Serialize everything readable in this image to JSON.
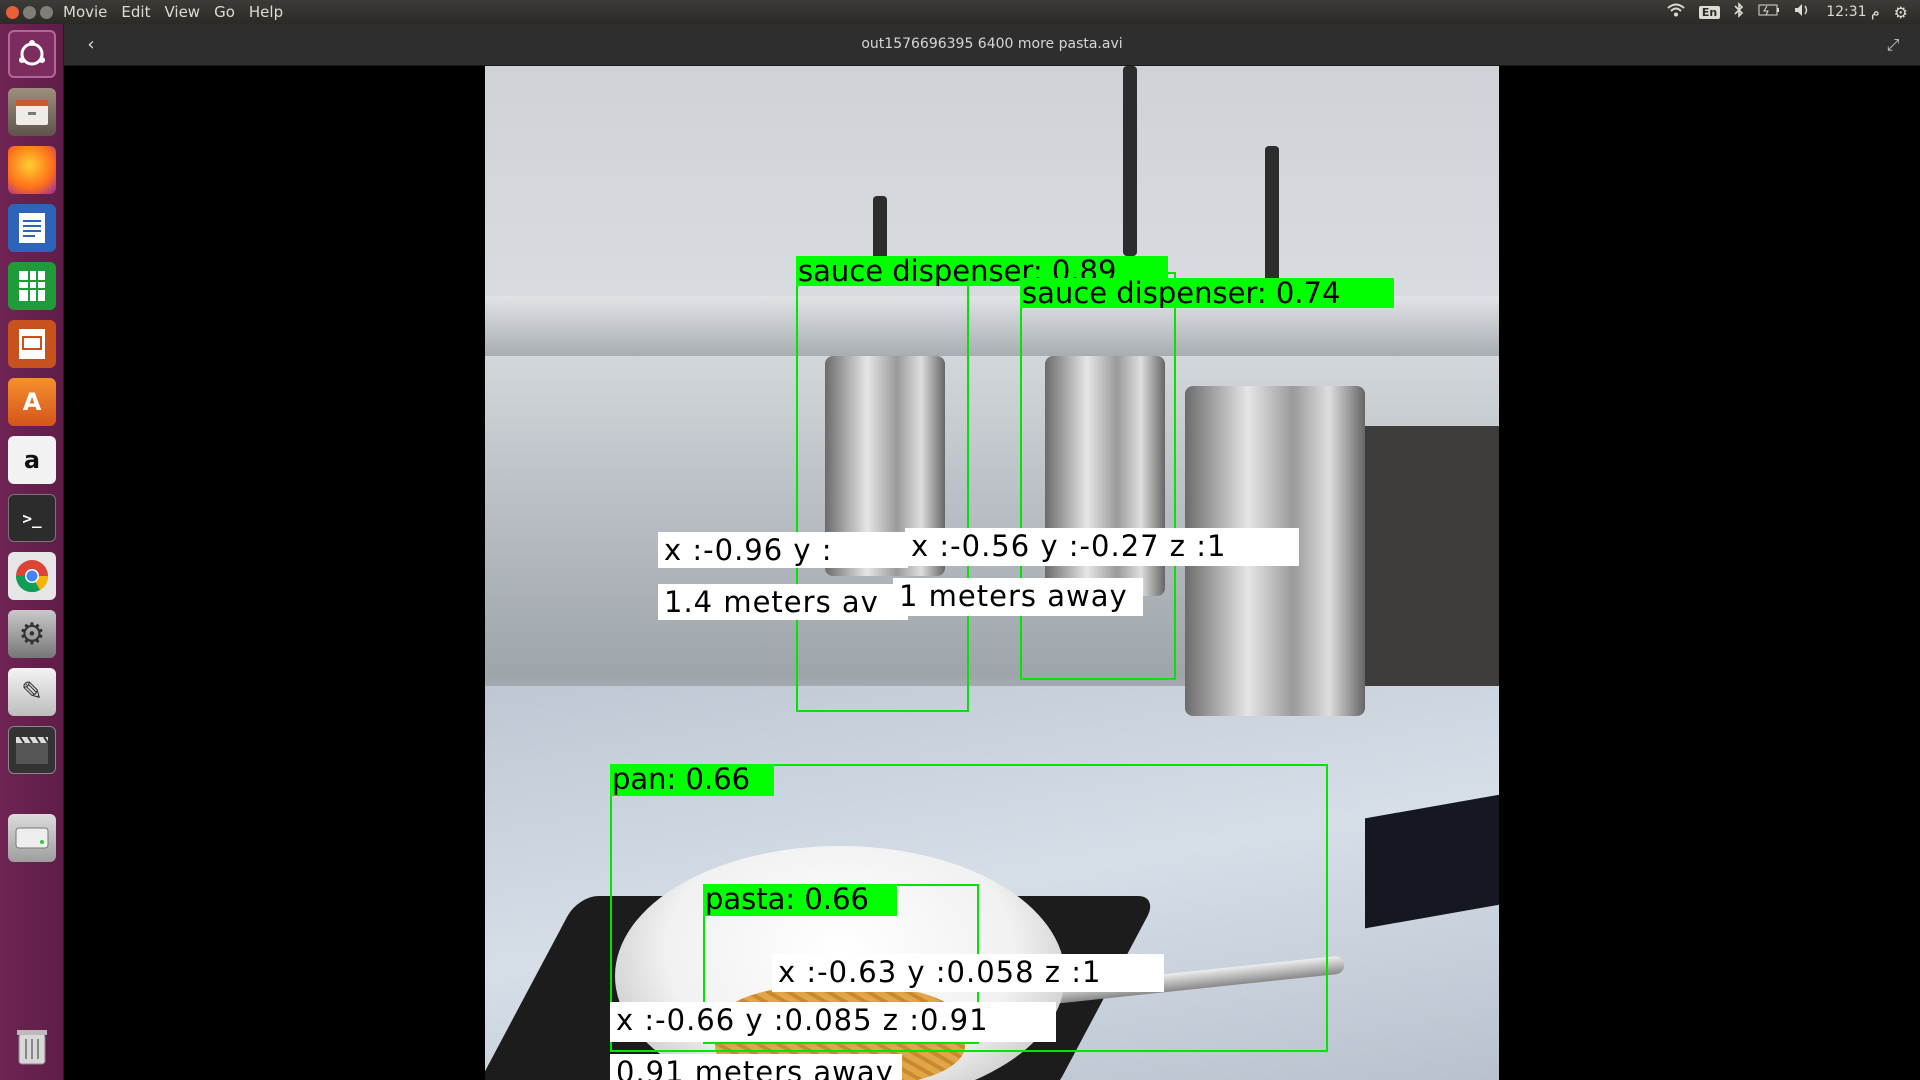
{
  "menubar": {
    "items": [
      "Movie",
      "Edit",
      "View",
      "Go",
      "Help"
    ],
    "indicators": {
      "keyboard": "En",
      "clock": "12:31 م"
    }
  },
  "launcher": {
    "icons": [
      "ubuntu-dash-icon",
      "files-icon",
      "firefox-icon",
      "writer-icon",
      "calc-icon",
      "impress-icon",
      "software-center-icon",
      "amazon-icon",
      "terminal-icon",
      "chrome-icon",
      "system-settings-icon",
      "text-editor-icon",
      "videos-icon",
      "drive-icon",
      "trash-icon"
    ]
  },
  "header": {
    "title": "out1576696395 6400 more pasta.avi"
  },
  "detections": {
    "sauce1_label": "sauce dispenser: 0.89",
    "sauce2_label": "sauce dispenser: 0.74",
    "pan_label": "pan: 0.66",
    "pasta_label": "pasta: 0.66",
    "sauce1_coord": "x :-0.96 y :",
    "sauce2_coord": "x :-0.56 y :-0.27 z :1",
    "sauce1_dist": "1.4 meters av",
    "sauce2_dist": "1 meters away",
    "pasta_coord": "x :-0.63 y :0.058 z :1",
    "pan_coord": "x :-0.66 y :0.085 z :0.91",
    "pan_dist": "0.91 meters away"
  },
  "colors": {
    "launcher": "#6f2454",
    "box": "#00e600",
    "label": "#00ff00"
  }
}
